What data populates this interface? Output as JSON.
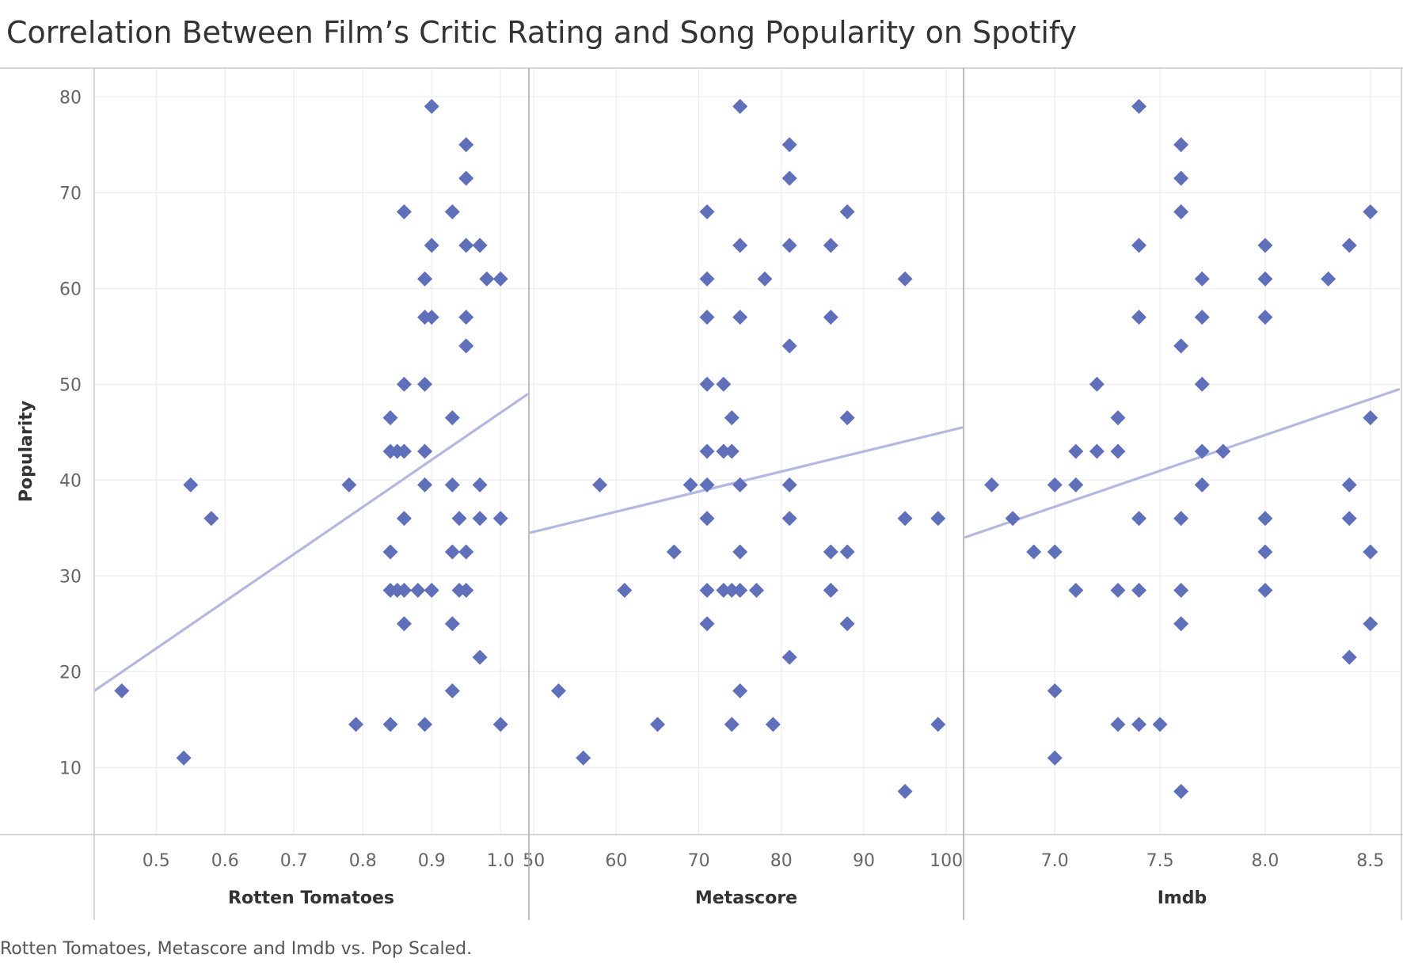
{
  "title": "Correlation Between Film’s Critic Rating and Song Popularity on Spotify",
  "caption": "Rotten Tomatoes, Metascore and Imdb vs. Pop Scaled.",
  "colors": {
    "marker": "#5f6fba",
    "trend": "#b3b8e0",
    "grid": "#ececec",
    "border": "#c8c8c8",
    "panel_divider": "#a8a8a8"
  },
  "chart_data": {
    "type": "scatter",
    "ylabel": "Popularity",
    "ylim": [
      3,
      83
    ],
    "yticks": [
      "10",
      "20",
      "30",
      "40",
      "50",
      "60",
      "70",
      "80"
    ],
    "marker": "diamond",
    "panels": [
      {
        "xlabel": "Rotten Tomatoes",
        "xlim": [
          0.41,
          1.04
        ],
        "xticks": [
          "0.5",
          "0.6",
          "0.7",
          "0.8",
          "0.9",
          "1.0"
        ],
        "trend": [
          [
            0.41,
            18
          ],
          [
            1.04,
            49
          ]
        ],
        "points": [
          [
            0.45,
            18
          ],
          [
            0.54,
            11
          ],
          [
            0.55,
            39.5
          ],
          [
            0.58,
            36
          ],
          [
            0.78,
            39.5
          ],
          [
            0.79,
            14.5
          ],
          [
            0.84,
            14.5
          ],
          [
            0.84,
            28.5
          ],
          [
            0.84,
            32.5
          ],
          [
            0.84,
            43
          ],
          [
            0.84,
            46.5
          ],
          [
            0.85,
            28.5
          ],
          [
            0.85,
            43
          ],
          [
            0.86,
            25
          ],
          [
            0.86,
            28.5
          ],
          [
            0.86,
            36
          ],
          [
            0.86,
            43
          ],
          [
            0.86,
            50
          ],
          [
            0.86,
            68
          ],
          [
            0.88,
            28.5
          ],
          [
            0.89,
            14.5
          ],
          [
            0.89,
            39.5
          ],
          [
            0.89,
            43
          ],
          [
            0.89,
            50
          ],
          [
            0.89,
            57
          ],
          [
            0.89,
            61
          ],
          [
            0.9,
            28.5
          ],
          [
            0.9,
            57
          ],
          [
            0.9,
            64.5
          ],
          [
            0.9,
            79
          ],
          [
            0.93,
            18
          ],
          [
            0.93,
            25
          ],
          [
            0.93,
            32.5
          ],
          [
            0.93,
            39.5
          ],
          [
            0.93,
            46.5
          ],
          [
            0.93,
            68
          ],
          [
            0.94,
            28.5
          ],
          [
            0.94,
            36
          ],
          [
            0.95,
            28.5
          ],
          [
            0.95,
            32.5
          ],
          [
            0.95,
            54
          ],
          [
            0.95,
            57
          ],
          [
            0.95,
            64.5
          ],
          [
            0.95,
            71.5
          ],
          [
            0.95,
            75
          ],
          [
            0.97,
            21.5
          ],
          [
            0.97,
            36
          ],
          [
            0.97,
            39.5
          ],
          [
            0.97,
            64.5
          ],
          [
            0.98,
            61
          ],
          [
            1.0,
            14.5
          ],
          [
            1.0,
            36
          ],
          [
            1.0,
            61
          ]
        ]
      },
      {
        "xlabel": "Metascore",
        "xlim": [
          49.5,
          102
        ],
        "xticks": [
          "50",
          "60",
          "70",
          "80",
          "90",
          "100"
        ],
        "trend": [
          [
            49.5,
            34.5
          ],
          [
            102,
            45.5
          ]
        ],
        "points": [
          [
            53,
            18
          ],
          [
            56,
            11
          ],
          [
            58,
            39.5
          ],
          [
            61,
            28.5
          ],
          [
            65,
            14.5
          ],
          [
            67,
            32.5
          ],
          [
            69,
            39.5
          ],
          [
            71,
            25
          ],
          [
            71,
            28.5
          ],
          [
            71,
            36
          ],
          [
            71,
            39.5
          ],
          [
            71,
            43
          ],
          [
            71,
            50
          ],
          [
            71,
            57
          ],
          [
            71,
            61
          ],
          [
            71,
            68
          ],
          [
            73,
            28.5
          ],
          [
            73,
            43
          ],
          [
            73,
            50
          ],
          [
            74,
            14.5
          ],
          [
            74,
            28.5
          ],
          [
            74,
            43
          ],
          [
            74,
            46.5
          ],
          [
            75,
            18
          ],
          [
            75,
            28.5
          ],
          [
            75,
            32.5
          ],
          [
            75,
            39.5
          ],
          [
            75,
            57
          ],
          [
            75,
            64.5
          ],
          [
            75,
            79
          ],
          [
            77,
            28.5
          ],
          [
            78,
            61
          ],
          [
            79,
            14.5
          ],
          [
            81,
            21.5
          ],
          [
            81,
            36
          ],
          [
            81,
            39.5
          ],
          [
            81,
            54
          ],
          [
            81,
            64.5
          ],
          [
            81,
            71.5
          ],
          [
            81,
            75
          ],
          [
            86,
            28.5
          ],
          [
            86,
            32.5
          ],
          [
            86,
            57
          ],
          [
            86,
            64.5
          ],
          [
            88,
            25
          ],
          [
            88,
            32.5
          ],
          [
            88,
            46.5
          ],
          [
            88,
            68
          ],
          [
            95,
            7.5
          ],
          [
            95,
            36
          ],
          [
            95,
            61
          ],
          [
            99,
            14.5
          ],
          [
            99,
            36
          ]
        ]
      },
      {
        "xlabel": "Imdb",
        "xlim": [
          6.57,
          8.64
        ],
        "xticks": [
          "7.0",
          "7.5",
          "8.0",
          "8.5"
        ],
        "trend": [
          [
            6.57,
            34
          ],
          [
            8.64,
            49.5
          ]
        ],
        "points": [
          [
            6.7,
            39.5
          ],
          [
            6.8,
            36
          ],
          [
            6.9,
            32.5
          ],
          [
            7.0,
            11
          ],
          [
            7.0,
            18
          ],
          [
            7.0,
            32.5
          ],
          [
            7.0,
            39.5
          ],
          [
            7.1,
            28.5
          ],
          [
            7.1,
            39.5
          ],
          [
            7.1,
            43
          ],
          [
            7.2,
            43
          ],
          [
            7.2,
            50
          ],
          [
            7.3,
            14.5
          ],
          [
            7.3,
            28.5
          ],
          [
            7.3,
            43
          ],
          [
            7.3,
            46.5
          ],
          [
            7.4,
            14.5
          ],
          [
            7.4,
            28.5
          ],
          [
            7.4,
            36
          ],
          [
            7.4,
            57
          ],
          [
            7.4,
            64.5
          ],
          [
            7.4,
            79
          ],
          [
            7.5,
            14.5
          ],
          [
            7.6,
            7.5
          ],
          [
            7.6,
            25
          ],
          [
            7.6,
            28.5
          ],
          [
            7.6,
            36
          ],
          [
            7.6,
            54
          ],
          [
            7.6,
            68
          ],
          [
            7.6,
            71.5
          ],
          [
            7.6,
            75
          ],
          [
            7.7,
            39.5
          ],
          [
            7.7,
            43
          ],
          [
            7.7,
            50
          ],
          [
            7.7,
            57
          ],
          [
            7.7,
            61
          ],
          [
            7.8,
            43
          ],
          [
            8.0,
            28.5
          ],
          [
            8.0,
            32.5
          ],
          [
            8.0,
            36
          ],
          [
            8.0,
            57
          ],
          [
            8.0,
            61
          ],
          [
            8.0,
            64.5
          ],
          [
            8.3,
            61
          ],
          [
            8.4,
            21.5
          ],
          [
            8.4,
            36
          ],
          [
            8.4,
            39.5
          ],
          [
            8.4,
            64.5
          ],
          [
            8.5,
            25
          ],
          [
            8.5,
            32.5
          ],
          [
            8.5,
            46.5
          ],
          [
            8.5,
            68
          ]
        ]
      }
    ]
  }
}
